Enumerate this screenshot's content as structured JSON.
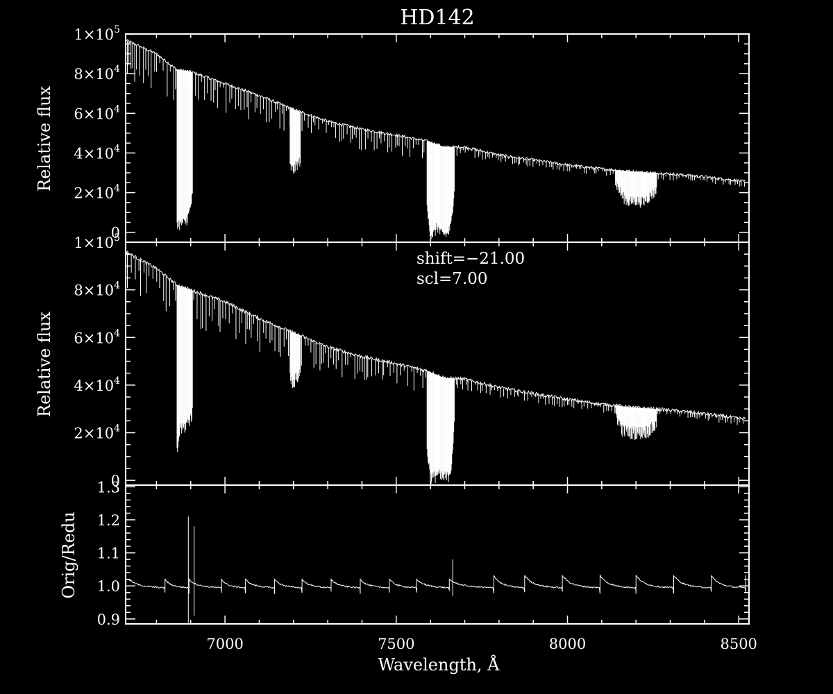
{
  "chart_data": [
    {
      "panel": "top",
      "type": "line",
      "title": "HD142",
      "xlabel": "",
      "ylabel": "Relative flux",
      "xlim": [
        6710,
        8530
      ],
      "ylim": [
        -5000,
        100000
      ],
      "xticks": [
        7000,
        7500,
        8000,
        8500
      ],
      "yticks": [
        {
          "value": 0,
          "mant": "0",
          "exp": ""
        },
        {
          "value": 20000,
          "mant": "2×10",
          "exp": "4"
        },
        {
          "value": 40000,
          "mant": "4×10",
          "exp": "4"
        },
        {
          "value": 60000,
          "mant": "6×10",
          "exp": "4"
        },
        {
          "value": 80000,
          "mant": "8×10",
          "exp": "4"
        },
        {
          "value": 100000,
          "mant": "1×10",
          "exp": "5"
        }
      ],
      "continuum": {
        "x": [
          6710,
          6800,
          6860,
          6900,
          7000,
          7100,
          7200,
          7300,
          7400,
          7500,
          7590,
          7640,
          7700,
          7800,
          7900,
          8000,
          8100,
          8200,
          8300,
          8400,
          8500,
          8520
        ],
        "y": [
          97000,
          90000,
          82000,
          81000,
          75000,
          69000,
          62000,
          56000,
          52000,
          49000,
          46000,
          43000,
          43000,
          39000,
          36500,
          34000,
          32000,
          30500,
          29500,
          28000,
          26000,
          25500
        ]
      },
      "absorption_bands": [
        {
          "x": [
            6860,
            6870,
            6875,
            6885,
            6895,
            6905
          ],
          "min": [
            2000,
            500,
            1500,
            2000,
            6000,
            15000
          ]
        },
        {
          "x": [
            7190,
            7200,
            7210,
            7220
          ],
          "min": [
            30000,
            28000,
            31000,
            33000
          ]
        },
        {
          "x": [
            7590,
            7600,
            7610,
            7620,
            7630,
            7640,
            7650,
            7660,
            7670
          ],
          "min": [
            8000,
            -4000,
            -4000,
            0,
            -4000,
            -4000,
            -4000,
            0,
            20000
          ]
        },
        {
          "x": [
            8140,
            8160,
            8180,
            8200,
            8220,
            8240,
            8260
          ],
          "min": [
            22000,
            15000,
            12000,
            13000,
            12000,
            15000,
            18000
          ]
        }
      ]
    },
    {
      "panel": "middle",
      "type": "line",
      "xlabel": "",
      "ylabel": "Relative flux",
      "xlim": [
        6710,
        8530
      ],
      "ylim": [
        -2000,
        100000
      ],
      "annotations": [
        "shift=−21.00",
        "scl=7.00"
      ],
      "xticks": [
        7000,
        7500,
        8000,
        8500
      ],
      "yticks": [
        {
          "value": 0,
          "mant": "0",
          "exp": ""
        },
        {
          "value": 20000,
          "mant": "2×10",
          "exp": "4"
        },
        {
          "value": 40000,
          "mant": "4×10",
          "exp": "4"
        },
        {
          "value": 60000,
          "mant": "6×10",
          "exp": "4"
        },
        {
          "value": 80000,
          "mant": "8×10",
          "exp": "4"
        },
        {
          "value": 100000,
          "mant": "1×10",
          "exp": "5"
        }
      ],
      "continuum": {
        "x": [
          6710,
          6800,
          6860,
          6900,
          7000,
          7100,
          7200,
          7300,
          7400,
          7500,
          7590,
          7640,
          7700,
          7800,
          7900,
          8000,
          8100,
          8200,
          8300,
          8400,
          8500,
          8520
        ],
        "y": [
          96000,
          89000,
          82000,
          80000,
          75000,
          68000,
          62000,
          56000,
          52000,
          49000,
          46000,
          43000,
          42500,
          39000,
          36500,
          34000,
          32000,
          30500,
          29500,
          28000,
          26000,
          26000
        ]
      },
      "absorption_bands": [
        {
          "x": [
            6860,
            6870,
            6875,
            6885,
            6895,
            6905
          ],
          "min": [
            8000,
            20000,
            18000,
            20000,
            22000,
            25000
          ]
        },
        {
          "x": [
            7190,
            7200,
            7210,
            7220
          ],
          "min": [
            40000,
            38000,
            40000,
            42000
          ]
        },
        {
          "x": [
            7590,
            7600,
            7610,
            7620,
            7630,
            7640,
            7650,
            7660,
            7670
          ],
          "min": [
            10000,
            -2000,
            -2000,
            0,
            -2000,
            -2000,
            -2000,
            2000,
            20000
          ]
        },
        {
          "x": [
            8140,
            8160,
            8180,
            8200,
            8220,
            8240,
            8260
          ],
          "min": [
            25000,
            18000,
            17000,
            17000,
            17000,
            18000,
            20000
          ]
        }
      ]
    },
    {
      "panel": "bottom",
      "type": "line",
      "xlabel": "Wavelength, Å",
      "ylabel": "Orig/Redu",
      "xlim": [
        6710,
        8530
      ],
      "ylim": [
        0.885,
        1.305
      ],
      "xticks": [
        7000,
        7500,
        8000,
        8500
      ],
      "yticks": [
        {
          "value": 0.9,
          "mant": "0.9",
          "exp": ""
        },
        {
          "value": 1.0,
          "mant": "1.0",
          "exp": ""
        },
        {
          "value": 1.1,
          "mant": "1.1",
          "exp": ""
        },
        {
          "value": 1.2,
          "mant": "1.2",
          "exp": ""
        },
        {
          "value": 1.3,
          "mant": "1.3",
          "exp": ""
        }
      ],
      "ratio_sawtooth_period_x": [
        6720,
        6825,
        6895,
        6990,
        7060,
        7145,
        7225,
        7310,
        7395,
        7480,
        7560,
        7655,
        7785,
        7875,
        7985,
        8095,
        8200,
        8310,
        8420,
        8520
      ],
      "ratio_spikes": [
        {
          "x": 6893,
          "top": 1.21,
          "bottom": 0.888
        },
        {
          "x": 6910,
          "top": 1.18,
          "bottom": 0.91
        },
        {
          "x": 7665,
          "top": 1.08,
          "bottom": 0.97
        }
      ]
    }
  ]
}
